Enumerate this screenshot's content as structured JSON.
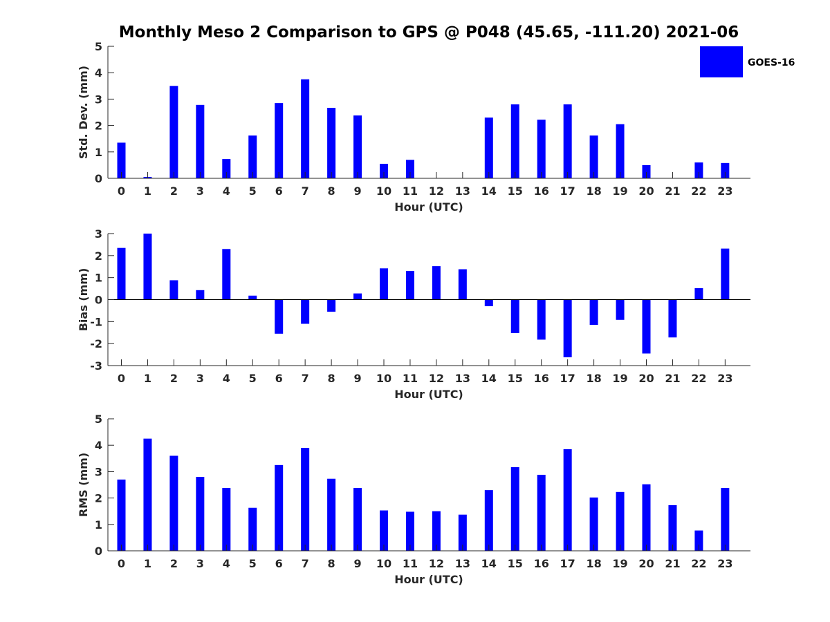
{
  "title": "Monthly Meso 2 Comparison to GPS @ P048 (45.65, -111.20) 2021-06",
  "legend": {
    "label": "GOES-16",
    "color": "#0000ff",
    "placement": "top-right"
  },
  "chart_data": [
    {
      "type": "bar",
      "categories": [
        "0",
        "1",
        "2",
        "3",
        "4",
        "5",
        "6",
        "7",
        "8",
        "9",
        "10",
        "11",
        "12",
        "13",
        "14",
        "15",
        "16",
        "17",
        "18",
        "19",
        "20",
        "21",
        "22",
        "23"
      ],
      "series": [
        {
          "name": "GOES-16",
          "values": [
            1.35,
            0.05,
            3.5,
            2.78,
            0.73,
            1.62,
            2.85,
            3.75,
            2.67,
            2.38,
            0.55,
            0.7,
            null,
            null,
            2.3,
            2.8,
            2.22,
            2.8,
            1.62,
            2.05,
            0.5,
            null,
            0.6,
            0.58
          ]
        }
      ],
      "xlabel": "Hour (UTC)",
      "ylabel": "Std. Dev. (mm)",
      "ylim": [
        0,
        5
      ],
      "yticks": [
        0,
        1,
        2,
        3,
        4,
        5
      ],
      "grid": false
    },
    {
      "type": "bar",
      "categories": [
        "0",
        "1",
        "2",
        "3",
        "4",
        "5",
        "6",
        "7",
        "8",
        "9",
        "10",
        "11",
        "12",
        "13",
        "14",
        "15",
        "16",
        "17",
        "18",
        "19",
        "20",
        "21",
        "22",
        "23"
      ],
      "series": [
        {
          "name": "GOES-16",
          "values": [
            2.35,
            3.0,
            0.88,
            0.43,
            2.3,
            0.18,
            -1.55,
            -1.1,
            -0.55,
            0.28,
            1.42,
            1.3,
            1.52,
            1.38,
            -0.3,
            -1.52,
            -1.82,
            -2.62,
            -1.15,
            -0.92,
            -2.45,
            -1.72,
            0.52,
            2.32
          ]
        }
      ],
      "xlabel": "Hour (UTC)",
      "ylabel": "Bias (mm)",
      "ylim": [
        -3,
        3
      ],
      "yticks": [
        -3,
        -2,
        -1,
        0,
        1,
        2,
        3
      ],
      "grid": false,
      "zero_line": true
    },
    {
      "type": "bar",
      "categories": [
        "0",
        "1",
        "2",
        "3",
        "4",
        "5",
        "6",
        "7",
        "8",
        "9",
        "10",
        "11",
        "12",
        "13",
        "14",
        "15",
        "16",
        "17",
        "18",
        "19",
        "20",
        "21",
        "22",
        "23"
      ],
      "series": [
        {
          "name": "GOES-16",
          "values": [
            2.7,
            4.25,
            3.6,
            2.8,
            2.38,
            1.63,
            3.25,
            3.9,
            2.73,
            2.38,
            1.53,
            1.48,
            1.5,
            1.37,
            2.3,
            3.17,
            2.88,
            3.85,
            2.02,
            2.23,
            2.52,
            1.73,
            0.77,
            2.38
          ]
        }
      ],
      "xlabel": "Hour (UTC)",
      "ylabel": "RMS (mm)",
      "ylim": [
        0,
        5
      ],
      "yticks": [
        0,
        1,
        2,
        3,
        4,
        5
      ],
      "grid": false
    }
  ]
}
